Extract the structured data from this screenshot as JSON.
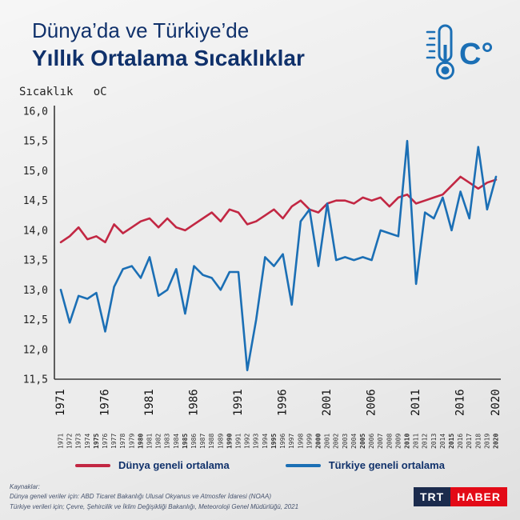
{
  "header": {
    "title_line1": "Dünya’da ve Türkiye’de",
    "title_line2": "Yıllık Ortalama Sıcaklıklar",
    "icon_label": "C°"
  },
  "colors": {
    "title": "#10316b",
    "world_line": "#c22743",
    "turkey_line": "#1b6fb5",
    "logo_navy": "#1b2b4d",
    "logo_red": "#e30a17"
  },
  "chart_data": {
    "type": "line",
    "title": "Dünya'da ve Türkiye'de Yıllık Ortalama Sıcaklıklar",
    "xlabel": "",
    "ylabel": "Sıcaklık   oC",
    "ylim": [
      11.5,
      16.0
    ],
    "ytick_step": 0.5,
    "grid": false,
    "legend_position": "bottom",
    "major_x_ticks": [
      1971,
      1976,
      1981,
      1986,
      1991,
      1996,
      2001,
      2006,
      2011,
      2016,
      2020
    ],
    "x": [
      1971,
      1972,
      1973,
      1974,
      1975,
      1976,
      1977,
      1978,
      1979,
      1980,
      1981,
      1982,
      1983,
      1984,
      1985,
      1986,
      1987,
      1988,
      1989,
      1990,
      1991,
      1992,
      1993,
      1994,
      1995,
      1996,
      1997,
      1998,
      1999,
      2000,
      2001,
      2002,
      2003,
      2004,
      2005,
      2006,
      2007,
      2008,
      2009,
      2010,
      2011,
      2012,
      2013,
      2014,
      2015,
      2016,
      2017,
      2018,
      2019,
      2020
    ],
    "series": [
      {
        "id": "world",
        "name": "Dünya geneli ortalama",
        "color": "#c22743",
        "values": [
          13.8,
          13.9,
          14.05,
          13.85,
          13.9,
          13.8,
          14.1,
          13.95,
          14.05,
          14.15,
          14.2,
          14.05,
          14.2,
          14.05,
          14.0,
          14.1,
          14.2,
          14.3,
          14.15,
          14.35,
          14.3,
          14.1,
          14.15,
          14.25,
          14.35,
          14.2,
          14.4,
          14.5,
          14.35,
          14.3,
          14.45,
          14.5,
          14.5,
          14.45,
          14.55,
          14.5,
          14.55,
          14.4,
          14.55,
          14.6,
          14.45,
          14.5,
          14.55,
          14.6,
          14.75,
          14.9,
          14.8,
          14.7,
          14.8,
          14.85
        ]
      },
      {
        "id": "turkey",
        "name": "Türkiye geneli ortalama",
        "color": "#1b6fb5",
        "values": [
          13.0,
          12.45,
          12.9,
          12.85,
          12.95,
          12.3,
          13.05,
          13.35,
          13.4,
          13.2,
          13.55,
          12.9,
          13.0,
          13.35,
          12.6,
          13.4,
          13.25,
          13.2,
          13.0,
          13.3,
          13.3,
          11.65,
          12.5,
          13.55,
          13.4,
          13.6,
          12.75,
          14.15,
          14.35,
          13.4,
          14.45,
          13.5,
          13.55,
          13.5,
          13.55,
          13.5,
          14.0,
          13.95,
          13.9,
          15.5,
          13.1,
          14.3,
          14.2,
          14.55,
          14.0,
          14.65,
          14.2,
          15.4,
          14.35,
          14.9
        ]
      }
    ]
  },
  "footer": {
    "sources_title": "Kaynaklar:",
    "source1": "Dünya geneli veriler için: ABD Ticaret Bakanlığı Ulusal Okyanus ve Atmosfer İdaresi (NOAA)",
    "source2": "Türkiye verileri için; Çevre, Şehircilik ve İklim Değişikliği Bakanlığı, Meteoroloji Genel Müdürlüğü, 2021",
    "logo": {
      "trt": "TRT",
      "haber": "HABER"
    }
  }
}
